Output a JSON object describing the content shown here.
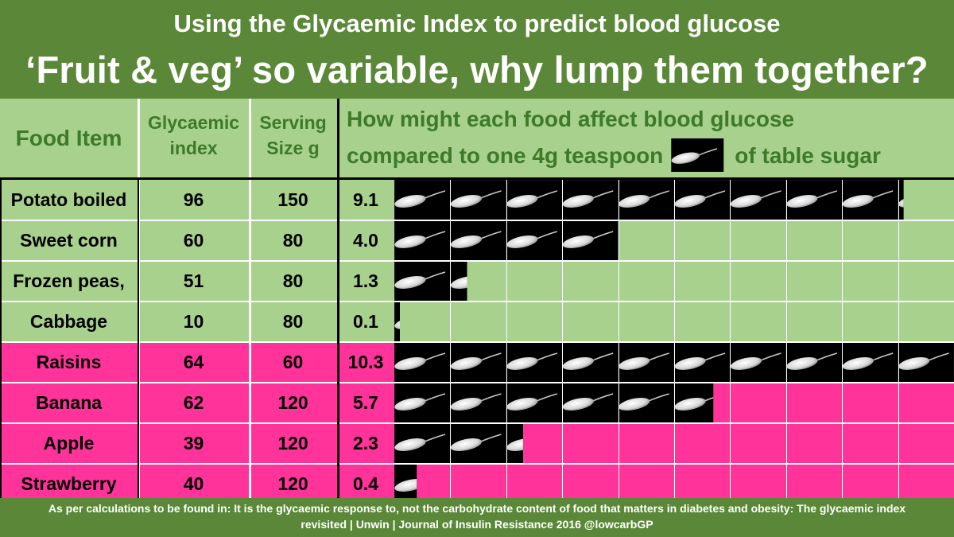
{
  "title": {
    "line1": "Using the Glycaemic Index to predict blood glucose",
    "line2": "‘Fruit & veg’ so variable, why lump them together?"
  },
  "header": {
    "food_item": "Food Item",
    "gi": "Glycaemic index",
    "serving": "Serving Size g",
    "question_line1": "How might each food affect blood glucose",
    "question_line2a": "compared to one 4g teaspoon",
    "question_line2b": "of table sugar",
    "icon": "sugar-teaspoon-icon"
  },
  "colors": {
    "banner": "#5b8838",
    "vegetable_row": "#a9d18e",
    "fruit_row": "#ff3399",
    "header_text": "#3d7a2a",
    "teaspoon_tile": "#000000"
  },
  "chart_data": {
    "type": "table",
    "unit_label": "4g teaspoon of table sugar",
    "columns": [
      "Food Item",
      "Glycaemic index",
      "Serving Size g",
      "Teaspoon equivalent"
    ],
    "rows": [
      {
        "food": "Potato boiled",
        "gi": "96",
        "serving": "150",
        "teaspoons": 9.1,
        "teaspoons_label": "9.1",
        "group": "vegetable"
      },
      {
        "food": "Sweet corn",
        "gi": "60",
        "serving": "80",
        "teaspoons": 4.0,
        "teaspoons_label": "4.0",
        "group": "vegetable"
      },
      {
        "food": "Frozen peas,",
        "gi": "51",
        "serving": "80",
        "teaspoons": 1.3,
        "teaspoons_label": "1.3",
        "group": "vegetable"
      },
      {
        "food": "Cabbage",
        "gi": "10",
        "serving": "80",
        "teaspoons": 0.1,
        "teaspoons_label": "0.1",
        "group": "vegetable"
      },
      {
        "food": "Raisins",
        "gi": "64",
        "serving": "60",
        "teaspoons": 10.3,
        "teaspoons_label": "10.3",
        "group": "fruit"
      },
      {
        "food": "Banana",
        "gi": "62",
        "serving": "120",
        "teaspoons": 5.7,
        "teaspoons_label": "5.7",
        "group": "fruit"
      },
      {
        "food": "Apple",
        "gi": "39",
        "serving": "120",
        "teaspoons": 2.3,
        "teaspoons_label": "2.3",
        "group": "fruit"
      },
      {
        "food": "Strawberry",
        "gi": "40",
        "serving": "120",
        "teaspoons": 0.4,
        "teaspoons_label": "0.4",
        "group": "fruit"
      }
    ]
  },
  "footer": {
    "line1": "As per calculations to be found in: It is the glycaemic response to, not the carbohydrate content of food that matters in diabetes and obesity: The glycaemic index",
    "line2": "revisited | Unwin | Journal of Insulin Resistance 2016  @lowcarbGP"
  }
}
